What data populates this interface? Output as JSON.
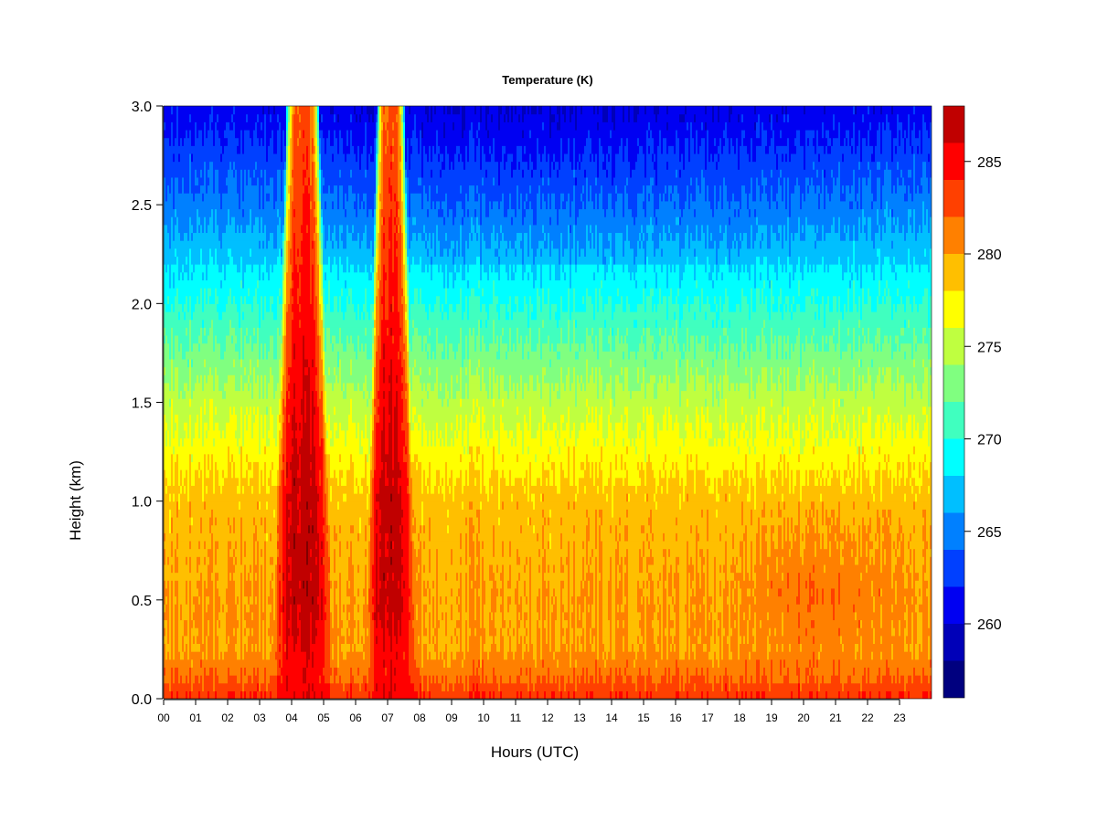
{
  "chart_data": {
    "type": "heatmap",
    "title": "Temperature (K)",
    "xlabel": "Hours (UTC)",
    "ylabel": "Height (km)",
    "xlim": [
      0,
      24
    ],
    "ylim": [
      0.0,
      3.0
    ],
    "x_ticks": [
      {
        "value": 0,
        "label": "00"
      },
      {
        "value": 1,
        "label": "01"
      },
      {
        "value": 2,
        "label": "02"
      },
      {
        "value": 3,
        "label": "03"
      },
      {
        "value": 4,
        "label": "04"
      },
      {
        "value": 5,
        "label": "05"
      },
      {
        "value": 6,
        "label": "06"
      },
      {
        "value": 7,
        "label": "07"
      },
      {
        "value": 8,
        "label": "08"
      },
      {
        "value": 9,
        "label": "09"
      },
      {
        "value": 10,
        "label": "10"
      },
      {
        "value": 11,
        "label": "11"
      },
      {
        "value": 12,
        "label": "12"
      },
      {
        "value": 13,
        "label": "13"
      },
      {
        "value": 14,
        "label": "14"
      },
      {
        "value": 15,
        "label": "15"
      },
      {
        "value": 16,
        "label": "16"
      },
      {
        "value": 17,
        "label": "17"
      },
      {
        "value": 18,
        "label": "18"
      },
      {
        "value": 19,
        "label": "19"
      },
      {
        "value": 20,
        "label": "20"
      },
      {
        "value": 21,
        "label": "21"
      },
      {
        "value": 22,
        "label": "22"
      },
      {
        "value": 23,
        "label": "23"
      }
    ],
    "y_ticks": [
      {
        "value": 0.0,
        "label": "0.0"
      },
      {
        "value": 0.5,
        "label": "0.5"
      },
      {
        "value": 1.0,
        "label": "1.0"
      },
      {
        "value": 1.5,
        "label": "1.5"
      },
      {
        "value": 2.0,
        "label": "2.0"
      },
      {
        "value": 2.5,
        "label": "2.5"
      },
      {
        "value": 3.0,
        "label": "3.0"
      }
    ],
    "colorbar": {
      "range": [
        256,
        288
      ],
      "levels": [
        256,
        258,
        260,
        262,
        264,
        266,
        268,
        270,
        272,
        274,
        276,
        278,
        280,
        282,
        284,
        286,
        288
      ],
      "colors": [
        "#00007f",
        "#0000b8",
        "#0000f2",
        "#0040ff",
        "#0080ff",
        "#00bfff",
        "#00ffff",
        "#40ffbf",
        "#80ff80",
        "#bfff40",
        "#ffff00",
        "#ffbf00",
        "#ff8000",
        "#ff4000",
        "#ff0000",
        "#c00000",
        "#800000"
      ],
      "ticks": [
        {
          "value": 260,
          "label": "260"
        },
        {
          "value": 265,
          "label": "265"
        },
        {
          "value": 270,
          "label": "270"
        },
        {
          "value": 275,
          "label": "275"
        },
        {
          "value": 280,
          "label": "280"
        },
        {
          "value": 285,
          "label": "285"
        }
      ]
    },
    "field": {
      "heights_km": [
        0.0,
        0.1,
        0.25,
        0.5,
        1.0,
        1.5,
        2.0,
        2.5,
        3.0
      ],
      "background_profile_K": [
        284,
        282,
        280,
        280,
        279,
        275,
        270,
        265,
        261
      ],
      "warm_columns": [
        {
          "start_hour": 3.4,
          "end_hour": 5.3,
          "peak_K": 287,
          "top_km": 3.0
        },
        {
          "start_hour": 6.3,
          "end_hour": 7.9,
          "peak_K": 287,
          "top_km": 3.0
        }
      ]
    }
  }
}
